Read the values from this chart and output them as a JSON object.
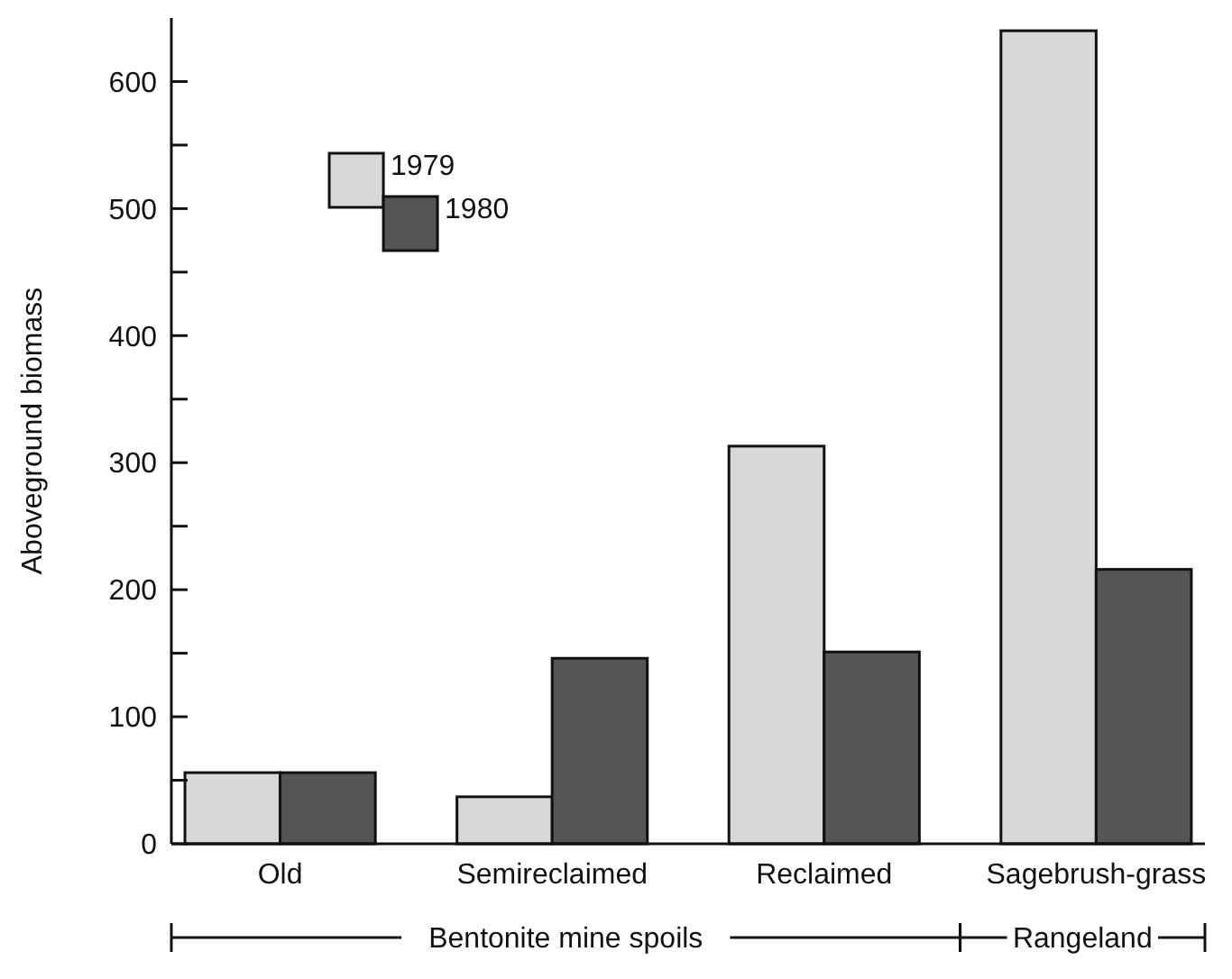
{
  "chart_data": {
    "type": "bar",
    "ylabel": "Aboveground biomass",
    "categories": [
      "Old",
      "Semireclaimed",
      "Reclaimed",
      "Sagebrush-grass"
    ],
    "series": [
      {
        "name": "1979",
        "color": "#d8d8d8",
        "values": [
          56,
          37,
          313,
          640
        ]
      },
      {
        "name": "1980",
        "color": "#555555",
        "values": [
          56,
          146,
          151,
          216
        ]
      }
    ],
    "ylim": [
      0,
      650
    ],
    "yticks": [
      0,
      {
        "value": 50,
        "label": null
      },
      100,
      {
        "value": 150,
        "label": null
      },
      200,
      {
        "value": 250,
        "label": null
      },
      300,
      {
        "value": 350,
        "label": null
      },
      400,
      {
        "value": 450,
        "label": null
      },
      500,
      {
        "value": 550,
        "label": null
      },
      600
    ],
    "legend": "top left",
    "grid": false,
    "annotations": [
      "Bentonite mine spoils",
      "Rangeland"
    ]
  }
}
